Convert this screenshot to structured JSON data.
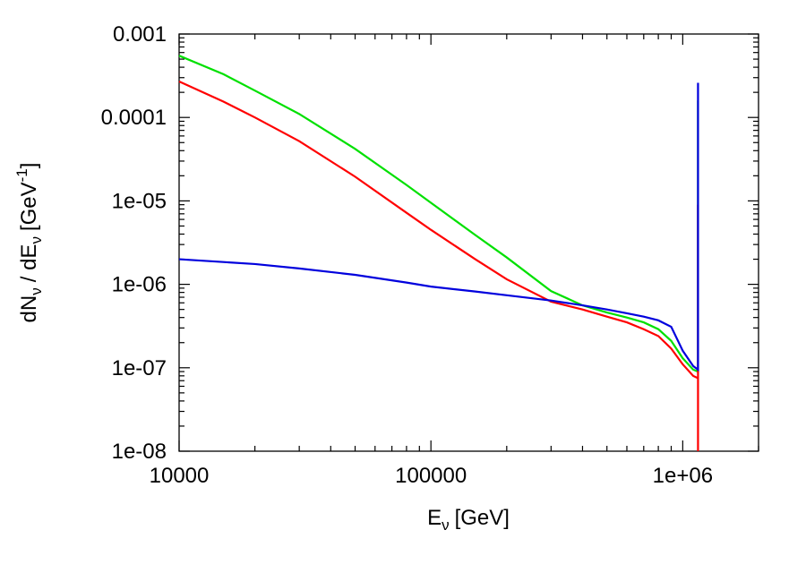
{
  "chart_data": {
    "type": "line",
    "title": "",
    "xlabel": {
      "main": "E",
      "sub": "ν",
      "unit": "[GeV]"
    },
    "ylabel": {
      "num": "dN",
      "num_sub": "ν",
      "sep": "/ dE",
      "den_sub": "ν",
      "unit_open": "[GeV",
      "unit_sup": "-1",
      "unit_close": "]"
    },
    "xscale": "log",
    "yscale": "log",
    "xlim": [
      10000,
      2000000
    ],
    "ylim": [
      1e-08,
      0.001
    ],
    "xticks": [
      {
        "value": 10000,
        "label": "10000"
      },
      {
        "value": 100000,
        "label": "100000"
      },
      {
        "value": 1000000,
        "label": "1e+06"
      }
    ],
    "yticks": [
      {
        "value": 0.001,
        "label": "0.001"
      },
      {
        "value": 0.0001,
        "label": "0.0001"
      },
      {
        "value": 1e-05,
        "label": "1e-05"
      },
      {
        "value": 1e-06,
        "label": "1e-06"
      },
      {
        "value": 1e-07,
        "label": "1e-07"
      },
      {
        "value": 1e-08,
        "label": "1e-08"
      }
    ],
    "grid": false,
    "legend": "none",
    "series": [
      {
        "color": "#00e000",
        "x": [
          10000,
          15000,
          20000,
          30000,
          50000,
          80000,
          100000,
          150000,
          200000,
          300000,
          400000,
          500000,
          600000,
          700000,
          800000,
          900000,
          1000000,
          1100000,
          1150000,
          1150000,
          1150000
        ],
        "y": [
          0.00055,
          0.00033,
          0.00021,
          0.00011,
          4.2e-05,
          1.55e-05,
          9.5e-06,
          3.9e-06,
          2.1e-06,
          8.3e-07,
          5.6e-07,
          4.6e-07,
          4e-07,
          3.5e-07,
          2.9e-07,
          2.1e-07,
          1.3e-07,
          9.5e-08,
          9e-08,
          1e-05,
          0.00016
        ]
      },
      {
        "color": "#ff0000",
        "x": [
          10000,
          15000,
          20000,
          30000,
          50000,
          80000,
          100000,
          150000,
          200000,
          300000,
          400000,
          500000,
          600000,
          700000,
          800000,
          900000,
          1000000,
          1100000,
          1150000,
          1150000,
          1150000
        ],
        "y": [
          0.00027,
          0.000155,
          0.0001,
          5.2e-05,
          1.95e-05,
          7.2e-06,
          4.5e-06,
          2e-06,
          1.15e-06,
          6.2e-07,
          5e-07,
          4.1e-07,
          3.5e-07,
          2.9e-07,
          2.4e-07,
          1.7e-07,
          1.1e-07,
          8e-08,
          7.5e-08,
          9e-06,
          1e-08
        ]
      },
      {
        "color": "#0000dd",
        "x": [
          10000,
          15000,
          20000,
          30000,
          50000,
          80000,
          100000,
          150000,
          200000,
          300000,
          400000,
          500000,
          600000,
          700000,
          800000,
          900000,
          1000000,
          1100000,
          1150000,
          1150000,
          1150000
        ],
        "y": [
          2e-06,
          1.85e-06,
          1.75e-06,
          1.55e-06,
          1.3e-06,
          1.05e-06,
          9.4e-07,
          8.2e-07,
          7.4e-07,
          6.4e-07,
          5.6e-07,
          5e-07,
          4.5e-07,
          4.1e-07,
          3.7e-07,
          3.1e-07,
          1.6e-07,
          1.05e-07,
          9.5e-08,
          1e-05,
          0.00026
        ]
      }
    ]
  }
}
